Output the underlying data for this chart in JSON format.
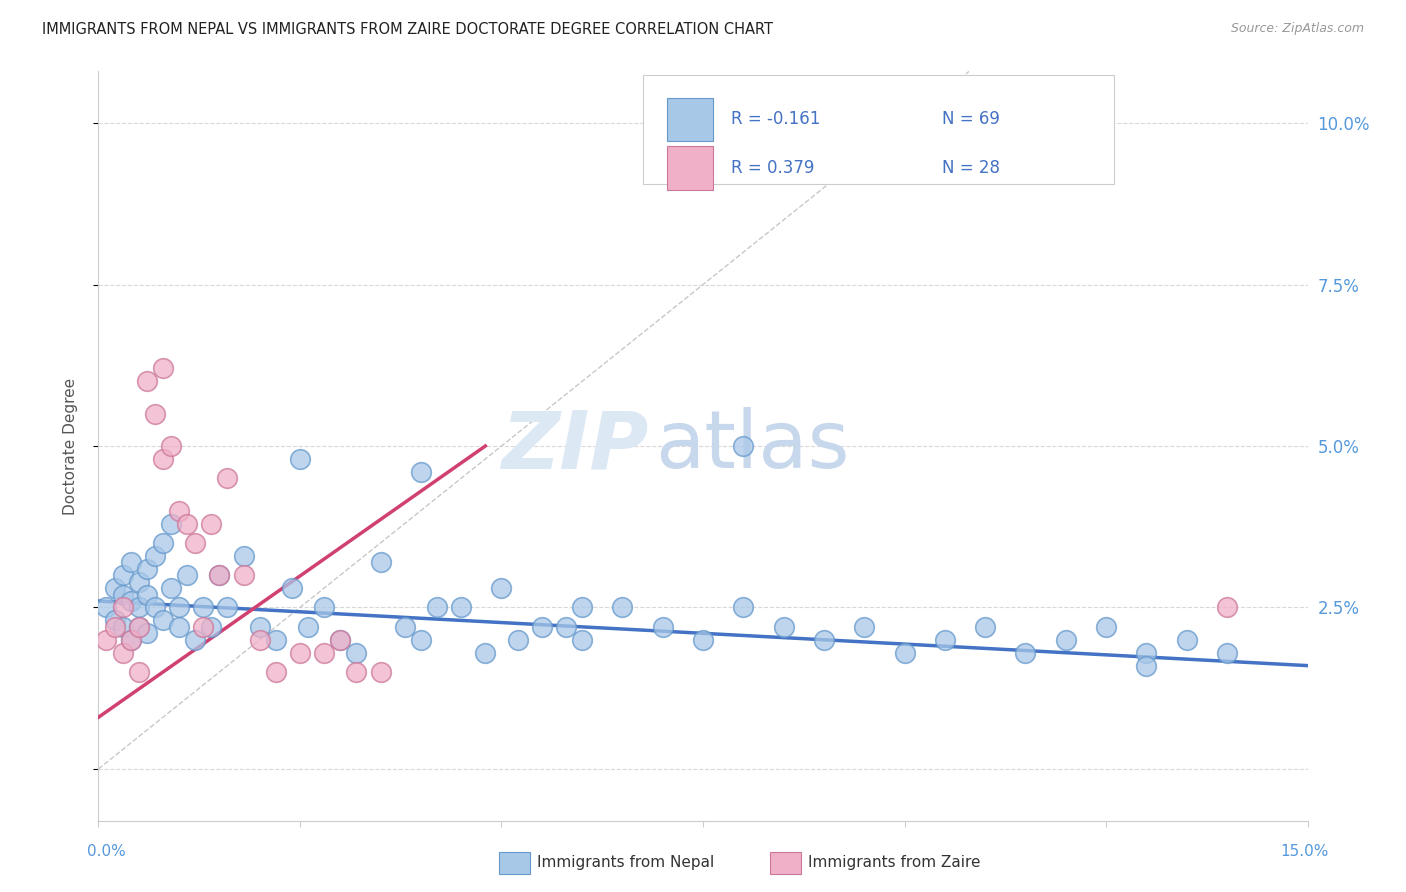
{
  "title": "IMMIGRANTS FROM NEPAL VS IMMIGRANTS FROM ZAIRE DOCTORATE DEGREE CORRELATION CHART",
  "source": "Source: ZipAtlas.com",
  "ylabel": "Doctorate Degree",
  "yticks": [
    0.0,
    0.025,
    0.05,
    0.075,
    0.1
  ],
  "ytick_labels": [
    "",
    "2.5%",
    "5.0%",
    "7.5%",
    "10.0%"
  ],
  "xlim": [
    0.0,
    0.15
  ],
  "ylim": [
    -0.008,
    0.108
  ],
  "nepal_R": "-0.161",
  "nepal_N": "69",
  "zaire_R": "0.379",
  "zaire_N": "28",
  "nepal_dot_color": "#a8c8e8",
  "nepal_edge_color": "#6699cc",
  "zaire_dot_color": "#f0b0c8",
  "zaire_edge_color": "#cc7799",
  "nepal_line_color": "#4472c4",
  "zaire_line_color": "#d04070",
  "diagonal_color": "#c8c8c8",
  "watermark_zi_color": "#dde8f4",
  "watermark_atlas_color": "#c8d8ec",
  "background_color": "#ffffff",
  "grid_color": "#d8d8d8",
  "legend_text_color": "#4472c4",
  "nepal_x": [
    0.001,
    0.002,
    0.002,
    0.003,
    0.003,
    0.003,
    0.004,
    0.004,
    0.004,
    0.005,
    0.005,
    0.005,
    0.006,
    0.006,
    0.006,
    0.007,
    0.007,
    0.008,
    0.008,
    0.009,
    0.009,
    0.01,
    0.01,
    0.011,
    0.012,
    0.013,
    0.014,
    0.015,
    0.016,
    0.018,
    0.02,
    0.022,
    0.024,
    0.026,
    0.028,
    0.03,
    0.032,
    0.035,
    0.038,
    0.04,
    0.042,
    0.045,
    0.048,
    0.05,
    0.052,
    0.055,
    0.058,
    0.06,
    0.065,
    0.07,
    0.075,
    0.08,
    0.085,
    0.09,
    0.095,
    0.1,
    0.105,
    0.11,
    0.115,
    0.12,
    0.125,
    0.13,
    0.135,
    0.14,
    0.06,
    0.025,
    0.04,
    0.08,
    0.13
  ],
  "nepal_y": [
    0.025,
    0.028,
    0.023,
    0.03,
    0.027,
    0.022,
    0.032,
    0.026,
    0.02,
    0.029,
    0.025,
    0.022,
    0.031,
    0.027,
    0.021,
    0.033,
    0.025,
    0.035,
    0.023,
    0.038,
    0.028,
    0.025,
    0.022,
    0.03,
    0.02,
    0.025,
    0.022,
    0.03,
    0.025,
    0.033,
    0.022,
    0.02,
    0.028,
    0.022,
    0.025,
    0.02,
    0.018,
    0.032,
    0.022,
    0.02,
    0.025,
    0.025,
    0.018,
    0.028,
    0.02,
    0.022,
    0.022,
    0.02,
    0.025,
    0.022,
    0.02,
    0.025,
    0.022,
    0.02,
    0.022,
    0.018,
    0.02,
    0.022,
    0.018,
    0.02,
    0.022,
    0.018,
    0.02,
    0.018,
    0.025,
    0.048,
    0.046,
    0.05,
    0.016
  ],
  "zaire_x": [
    0.001,
    0.002,
    0.003,
    0.003,
    0.004,
    0.005,
    0.005,
    0.006,
    0.007,
    0.008,
    0.008,
    0.009,
    0.01,
    0.011,
    0.012,
    0.013,
    0.014,
    0.015,
    0.016,
    0.018,
    0.02,
    0.022,
    0.025,
    0.028,
    0.03,
    0.032,
    0.035,
    0.14
  ],
  "zaire_y": [
    0.02,
    0.022,
    0.018,
    0.025,
    0.02,
    0.022,
    0.015,
    0.06,
    0.055,
    0.048,
    0.062,
    0.05,
    0.04,
    0.038,
    0.035,
    0.022,
    0.038,
    0.03,
    0.045,
    0.03,
    0.02,
    0.015,
    0.018,
    0.018,
    0.02,
    0.015,
    0.015,
    0.025
  ]
}
